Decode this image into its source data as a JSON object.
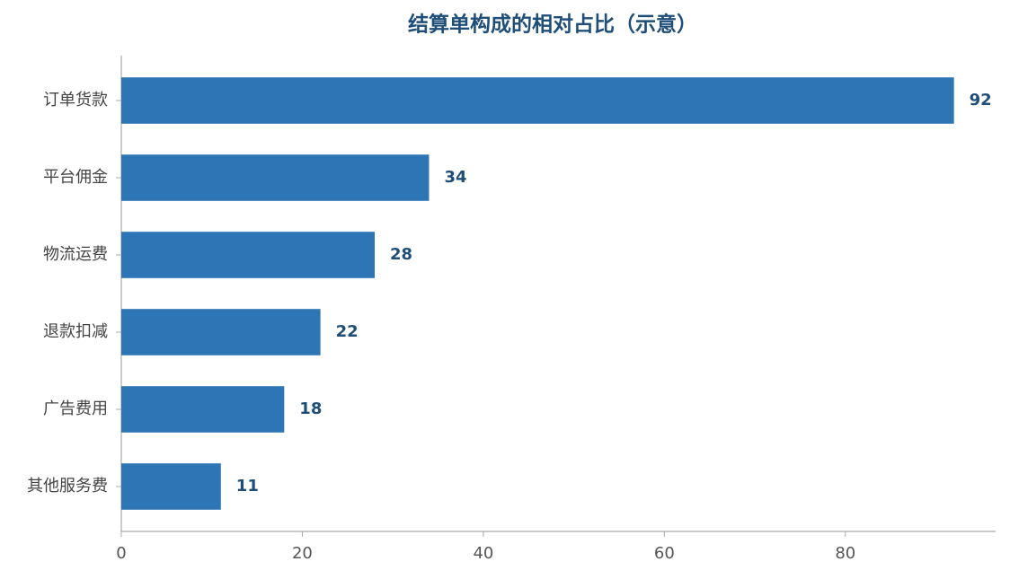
{
  "chart_data": {
    "type": "bar",
    "orientation": "horizontal",
    "title": "结算单构成的相对占比（示意）",
    "categories": [
      "订单货款",
      "平台佣金",
      "物流运费",
      "退款扣减",
      "广告费用",
      "其他服务费"
    ],
    "values": [
      92,
      34,
      28,
      22,
      18,
      11
    ],
    "color": "#2e75b6",
    "xlim": [
      0,
      96.6
    ],
    "xticks": [
      0,
      20,
      40,
      60,
      80
    ],
    "grid": false
  }
}
